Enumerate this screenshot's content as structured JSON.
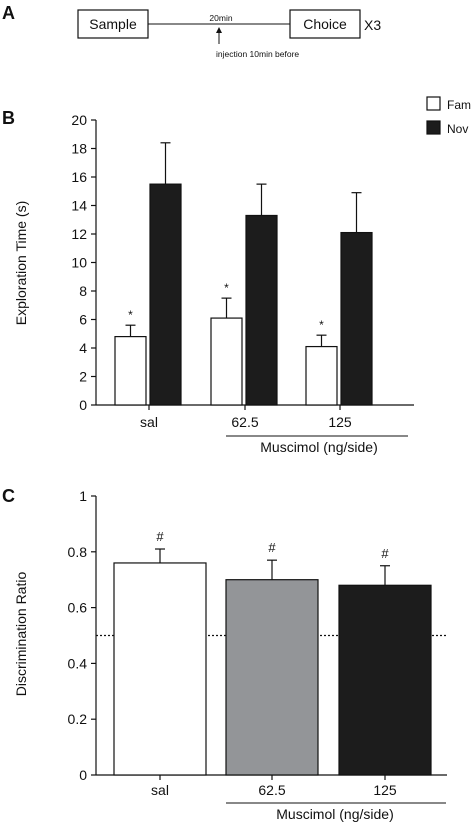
{
  "panel_a": {
    "letter": "A",
    "sample_label": "Sample",
    "delay_label": "20min",
    "choice_label": "Choice",
    "repeat_label": "X3",
    "injection_label": "injection 10min before"
  },
  "chart_data": [
    {
      "panel": "B",
      "type": "bar",
      "categories": [
        "sal",
        "62.5",
        "125"
      ],
      "series": [
        {
          "name": "Fam",
          "values": [
            4.8,
            6.1,
            4.1
          ],
          "errors": [
            0.8,
            1.4,
            0.8
          ],
          "color": "#ffffff"
        },
        {
          "name": "Nov",
          "values": [
            15.5,
            13.3,
            12.1
          ],
          "errors": [
            2.9,
            2.2,
            2.8
          ],
          "color": "#1c1c1c"
        }
      ],
      "significance": [
        "*",
        "*",
        "*"
      ],
      "xlabel": "Muscimol (ng/side)",
      "ylabel": "Exploration Time (s)",
      "ylim": [
        0,
        20
      ],
      "yticks": [
        "0",
        "2",
        "4",
        "6",
        "8",
        "10",
        "12",
        "14",
        "16",
        "18",
        "20"
      ],
      "legend_position": "top-right",
      "grid": false
    },
    {
      "panel": "C",
      "type": "bar",
      "categories": [
        "sal",
        "62.5",
        "125"
      ],
      "values": [
        0.76,
        0.7,
        0.68
      ],
      "errors": [
        0.05,
        0.07,
        0.07
      ],
      "colors": [
        "#ffffff",
        "#939598",
        "#1c1c1c"
      ],
      "significance": [
        "#",
        "#",
        "#"
      ],
      "reference_line": 0.5,
      "xlabel": "Muscimol (ng/side)",
      "ylabel": "Discrimination Ratio",
      "ylim": [
        0,
        1
      ],
      "yticks": [
        "0",
        "0.2",
        "0.4",
        "0.6",
        "0.8",
        "1"
      ],
      "grid": false
    }
  ]
}
